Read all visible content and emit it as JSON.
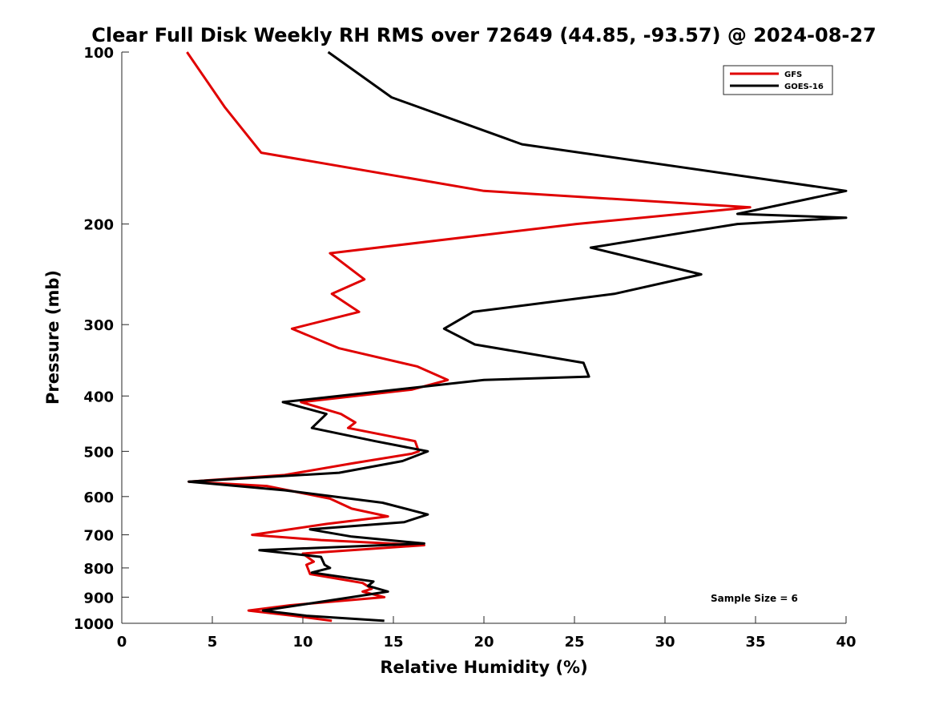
{
  "chart_data": {
    "type": "line",
    "title": "Clear Full Disk Weekly RH RMS over 72649 (44.85, -93.57) @ 2024-08-27",
    "xlabel": "Relative Humidity (%)",
    "ylabel": "Pressure (mb)",
    "xlim": [
      0,
      40
    ],
    "ylim": [
      100,
      1000
    ],
    "yscale": "log",
    "y_reversed": true,
    "xticks": [
      0,
      5,
      10,
      15,
      20,
      25,
      30,
      35,
      40
    ],
    "yticks": [
      100,
      200,
      300,
      400,
      500,
      600,
      700,
      800,
      900,
      1000
    ],
    "legend_position": "top-right",
    "annotation": "Sample Size = 6",
    "series": [
      {
        "name": "GFS",
        "color": "#e00000",
        "points": [
          [
            3.6,
            100
          ],
          [
            5.7,
            125
          ],
          [
            7.7,
            150
          ],
          [
            20,
            175
          ],
          [
            34.7,
            187
          ],
          [
            25.1,
            200
          ],
          [
            11.5,
            225
          ],
          [
            13.4,
            250
          ],
          [
            11.6,
            265
          ],
          [
            13.1,
            285
          ],
          [
            9.4,
            305
          ],
          [
            12.0,
            330
          ],
          [
            16.3,
            355
          ],
          [
            18.0,
            375
          ],
          [
            16.0,
            390
          ],
          [
            9.9,
            410
          ],
          [
            12.1,
            430
          ],
          [
            12.9,
            445
          ],
          [
            12.5,
            455
          ],
          [
            16.2,
            480
          ],
          [
            16.4,
            500
          ],
          [
            16.0,
            505
          ],
          [
            12.7,
            525
          ],
          [
            9.0,
            550
          ],
          [
            3.7,
            565
          ],
          [
            8.0,
            575
          ],
          [
            11.5,
            605
          ],
          [
            12.7,
            630
          ],
          [
            14.7,
            650
          ],
          [
            11.3,
            670
          ],
          [
            7.2,
            700
          ],
          [
            11.0,
            715
          ],
          [
            16.7,
            730
          ],
          [
            10.0,
            755
          ],
          [
            10.6,
            780
          ],
          [
            10.2,
            790
          ],
          [
            10.4,
            820
          ],
          [
            13.3,
            850
          ],
          [
            13.8,
            870
          ],
          [
            13.3,
            880
          ],
          [
            14.5,
            900
          ],
          [
            9.3,
            930
          ],
          [
            7.0,
            950
          ],
          [
            9.5,
            970
          ],
          [
            11.6,
            990
          ]
        ]
      },
      {
        "name": "GOES-16",
        "color": "#000000",
        "points": [
          [
            11.4,
            100
          ],
          [
            14.9,
            120
          ],
          [
            22.1,
            145
          ],
          [
            40.0,
            175
          ],
          [
            34,
            192
          ],
          [
            40.0,
            195
          ],
          [
            34.0,
            200
          ],
          [
            25.9,
            220
          ],
          [
            32.0,
            245
          ],
          [
            27.2,
            265
          ],
          [
            19.4,
            285
          ],
          [
            17.8,
            305
          ],
          [
            19.5,
            325
          ],
          [
            25.5,
            350
          ],
          [
            25.8,
            370
          ],
          [
            20.0,
            375
          ],
          [
            8.9,
            410
          ],
          [
            11.3,
            430
          ],
          [
            10.5,
            455
          ],
          [
            14.0,
            480
          ],
          [
            16.9,
            500
          ],
          [
            15.5,
            520
          ],
          [
            12.0,
            545
          ],
          [
            3.7,
            565
          ],
          [
            9.0,
            585
          ],
          [
            14.4,
            615
          ],
          [
            16.9,
            645
          ],
          [
            15.6,
            665
          ],
          [
            10.4,
            685
          ],
          [
            12.7,
            705
          ],
          [
            16.7,
            725
          ],
          [
            7.6,
            745
          ],
          [
            11.0,
            765
          ],
          [
            11.2,
            790
          ],
          [
            11.5,
            800
          ],
          [
            10.5,
            815
          ],
          [
            13.9,
            845
          ],
          [
            13.6,
            860
          ],
          [
            14.7,
            880
          ],
          [
            12.7,
            900
          ],
          [
            7.8,
            950
          ],
          [
            10.2,
            970
          ],
          [
            14.5,
            990
          ]
        ]
      }
    ]
  }
}
